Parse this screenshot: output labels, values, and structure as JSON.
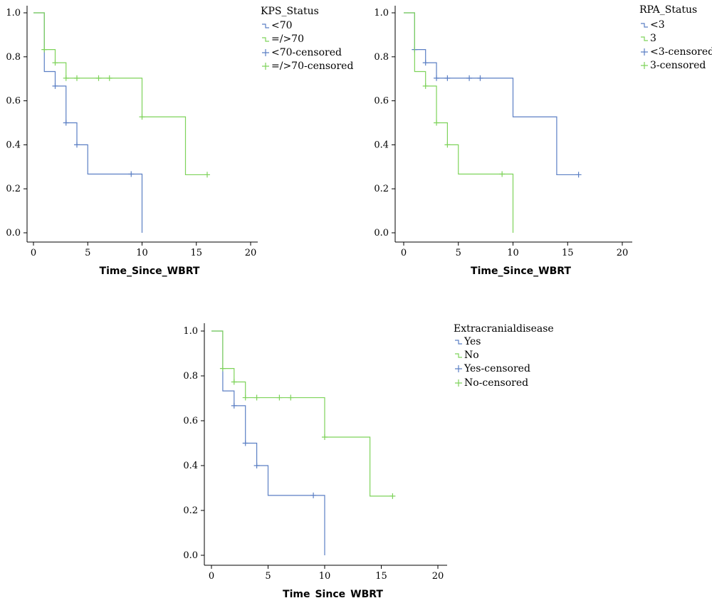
{
  "chart_data": [
    {
      "type": "line",
      "xlabel": "Time_Since_WBRT",
      "ylabel": "",
      "xlim": [
        0,
        20
      ],
      "ylim": [
        0.0,
        1.0
      ],
      "xticks": [
        "0",
        "5",
        "10",
        "15",
        "20"
      ],
      "yticks": [
        "0.0",
        "0.2",
        "0.4",
        "0.6",
        "0.8",
        "1.0"
      ],
      "legend_title": "KPS_Status",
      "legend_position": "top-right",
      "legend_labels": [
        "<70",
        "=/>70",
        "<70-censored",
        "=/>70-censored"
      ],
      "series": [
        {
          "name": "<70",
          "color": "#5b7fc4",
          "steps": [
            [
              0,
              1.0
            ],
            [
              1,
              0.733
            ],
            [
              2,
              0.667
            ],
            [
              3,
              0.5
            ],
            [
              4,
              0.4
            ],
            [
              5,
              0.267
            ],
            [
              10,
              0.0
            ]
          ],
          "censored": [
            [
              2,
              0.667
            ],
            [
              3,
              0.5
            ],
            [
              4,
              0.4
            ],
            [
              9,
              0.267
            ]
          ]
        },
        {
          "name": "=/>70",
          "color": "#7ed35a",
          "steps": [
            [
              0,
              1.0
            ],
            [
              1,
              0.833
            ],
            [
              2,
              0.773
            ],
            [
              3,
              0.703
            ],
            [
              10,
              0.527
            ],
            [
              14,
              0.264
            ]
          ],
          "end_x": 16,
          "censored": [
            [
              1,
              0.833
            ],
            [
              2,
              0.773
            ],
            [
              3,
              0.703
            ],
            [
              4,
              0.703
            ],
            [
              6,
              0.703
            ],
            [
              7,
              0.703
            ],
            [
              10,
              0.527
            ],
            [
              16,
              0.264
            ]
          ]
        }
      ]
    },
    {
      "type": "line",
      "xlabel": "Time_Since_WBRT",
      "ylabel": "",
      "xlim": [
        0,
        20
      ],
      "ylim": [
        0.0,
        1.0
      ],
      "xticks": [
        "0",
        "5",
        "10",
        "15",
        "20"
      ],
      "yticks": [
        "0.0",
        "0.2",
        "0.4",
        "0.6",
        "0.8",
        "1.0"
      ],
      "legend_title": "RPA_Status",
      "legend_position": "top-right",
      "legend_labels": [
        "<3",
        "3",
        "<3-censored",
        "3-censored"
      ],
      "series": [
        {
          "name": "<3",
          "color": "#5b7fc4",
          "steps": [
            [
              0,
              1.0
            ],
            [
              1,
              0.833
            ],
            [
              2,
              0.773
            ],
            [
              3,
              0.703
            ],
            [
              10,
              0.527
            ],
            [
              14,
              0.264
            ]
          ],
          "end_x": 16,
          "censored": [
            [
              1,
              0.833
            ],
            [
              2,
              0.773
            ],
            [
              3,
              0.703
            ],
            [
              4,
              0.703
            ],
            [
              6,
              0.703
            ],
            [
              7,
              0.703
            ],
            [
              16,
              0.264
            ]
          ]
        },
        {
          "name": "3",
          "color": "#7ed35a",
          "steps": [
            [
              0,
              1.0
            ],
            [
              1,
              0.733
            ],
            [
              2,
              0.667
            ],
            [
              3,
              0.5
            ],
            [
              4,
              0.4
            ],
            [
              5,
              0.267
            ],
            [
              10,
              0.0
            ]
          ],
          "censored": [
            [
              2,
              0.667
            ],
            [
              3,
              0.5
            ],
            [
              4,
              0.4
            ],
            [
              9,
              0.267
            ]
          ]
        }
      ]
    },
    {
      "type": "line",
      "xlabel": "Time_Since_WBRT",
      "ylabel": "",
      "xlim": [
        0,
        20
      ],
      "ylim": [
        0.0,
        1.0
      ],
      "xticks": [
        "0",
        "5",
        "10",
        "15",
        "20"
      ],
      "yticks": [
        "0.0",
        "0.2",
        "0.4",
        "0.6",
        "0.8",
        "1.0"
      ],
      "legend_title": "Extracranialdisease",
      "legend_position": "top-right",
      "legend_labels": [
        "Yes",
        "No",
        "Yes-censored",
        "No-censored"
      ],
      "series": [
        {
          "name": "Yes",
          "color": "#5b7fc4",
          "steps": [
            [
              0,
              1.0
            ],
            [
              1,
              0.733
            ],
            [
              2,
              0.667
            ],
            [
              3,
              0.5
            ],
            [
              4,
              0.4
            ],
            [
              5,
              0.267
            ],
            [
              10,
              0.0
            ]
          ],
          "censored": [
            [
              2,
              0.667
            ],
            [
              3,
              0.5
            ],
            [
              4,
              0.4
            ],
            [
              9,
              0.267
            ]
          ]
        },
        {
          "name": "No",
          "color": "#7ed35a",
          "steps": [
            [
              0,
              1.0
            ],
            [
              1,
              0.833
            ],
            [
              2,
              0.773
            ],
            [
              3,
              0.703
            ],
            [
              10,
              0.527
            ],
            [
              14,
              0.264
            ]
          ],
          "end_x": 16,
          "censored": [
            [
              1,
              0.833
            ],
            [
              2,
              0.773
            ],
            [
              3,
              0.703
            ],
            [
              4,
              0.703
            ],
            [
              6,
              0.703
            ],
            [
              7,
              0.703
            ],
            [
              10,
              0.527
            ],
            [
              16,
              0.264
            ]
          ]
        }
      ]
    }
  ]
}
